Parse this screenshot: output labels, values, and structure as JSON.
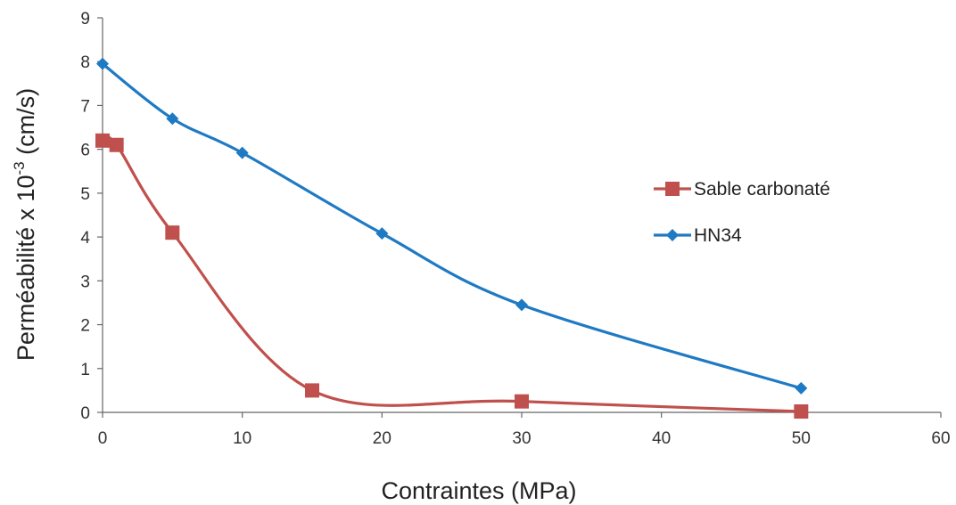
{
  "chart_data": {
    "type": "line",
    "title": "",
    "xlabel": "Contraintes (MPa)",
    "ylabel_prefix": "Perméabilité x 10",
    "ylabel_exponent": "-3",
    "ylabel_suffix": " (cm/s)",
    "xlim": [
      0,
      60
    ],
    "ylim": [
      0,
      9
    ],
    "xticks": [
      0,
      10,
      20,
      30,
      40,
      50,
      60
    ],
    "yticks": [
      0,
      1,
      2,
      3,
      4,
      5,
      6,
      7,
      8,
      9
    ],
    "grid": false,
    "legend_position": "right",
    "series": [
      {
        "name": "Sable carbonaté",
        "color": "#c0504d",
        "marker": "square",
        "smooth": true,
        "points": [
          [
            0,
            6.2
          ],
          [
            1,
            6.1
          ],
          [
            5,
            4.1
          ],
          [
            15,
            0.5
          ],
          [
            30,
            0.25
          ],
          [
            50,
            0.02
          ]
        ]
      },
      {
        "name": "HN34",
        "color": "#1f7ac4",
        "marker": "diamond",
        "smooth": true,
        "points": [
          [
            0,
            7.95
          ],
          [
            5,
            6.7
          ],
          [
            10,
            5.92
          ],
          [
            20,
            4.08
          ],
          [
            30,
            2.45
          ],
          [
            50,
            0.55
          ]
        ]
      }
    ]
  }
}
